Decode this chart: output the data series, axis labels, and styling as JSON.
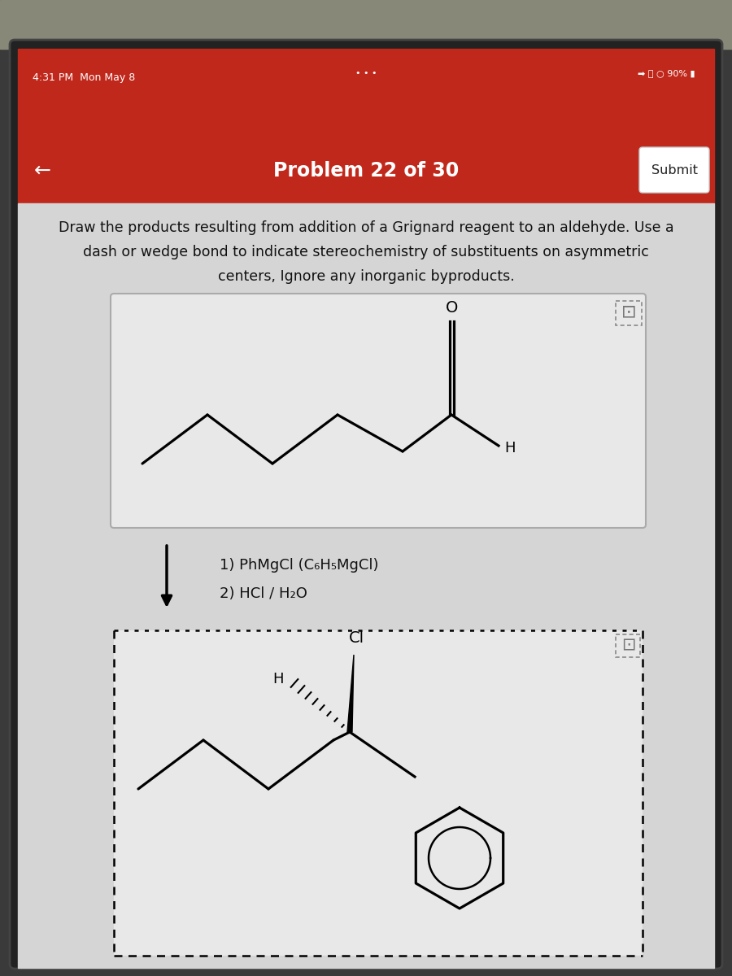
{
  "bg_outer": "#3a3a3a",
  "bg_header_red": "#c0281c",
  "bg_body": "#d5d5d5",
  "bg_panel": "#e8e8e8",
  "status_time": "4:31 PM  Mon May 8",
  "header_title": "Problem 22 of 30",
  "submit_label": "Submit",
  "instruction_line1": "Draw the products resulting from addition of a Grignard reagent to an aldehyde. Use a",
  "instruction_line2": "dash or wedge bond to indicate stereochemistry of substituents on asymmetric",
  "instruction_line3": "centers, Ignore any inorganic byproducts.",
  "reagent1": "1) PhMgCl (C₆H₅MgCl)",
  "reagent2": "2) HCl / H₂O",
  "aldehyde_O": "O",
  "aldehyde_H": "H",
  "product_Cl": "Cl",
  "product_H": "H",
  "text_dark": "#111111",
  "white": "#ffffff",
  "panel_border": "#aaaaaa"
}
